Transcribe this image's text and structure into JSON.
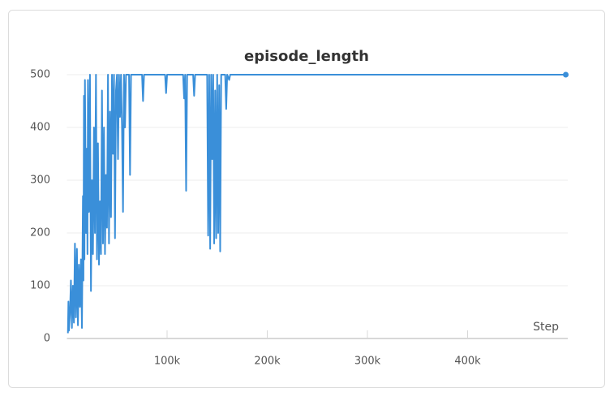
{
  "chart_data": {
    "type": "line",
    "title": "episode_length",
    "x_label": "Step",
    "color": "#3a8fd9",
    "xlim": [
      0,
      500000
    ],
    "ylim": [
      0,
      500
    ],
    "xticks": [
      {
        "value": 100000,
        "label": "100k"
      },
      {
        "value": 200000,
        "label": "200k"
      },
      {
        "value": 300000,
        "label": "300k"
      },
      {
        "value": 400000,
        "label": "400k"
      }
    ],
    "yticks": [
      0,
      100,
      200,
      300,
      400,
      500
    ],
    "grid": true,
    "x": [
      1000,
      1500,
      2000,
      3000,
      4000,
      5000,
      6000,
      7000,
      8000,
      9000,
      10000,
      11000,
      12000,
      13000,
      14000,
      15000,
      16000,
      16500,
      17000,
      17500,
      18000,
      19000,
      20000,
      20500,
      21000,
      22000,
      23000,
      24000,
      25000,
      26000,
      27000,
      28000,
      29000,
      30000,
      31000,
      32000,
      33000,
      34000,
      35000,
      36000,
      37000,
      38000,
      39000,
      40000,
      41000,
      42000,
      43000,
      44000,
      45000,
      46000,
      47000,
      48000,
      49000,
      50000,
      51000,
      52000,
      53000,
      54000,
      55000,
      56000,
      57000,
      58000,
      59000,
      62000,
      63000,
      64000,
      75000,
      76000,
      77000,
      98000,
      99000,
      100000,
      116000,
      117000,
      118000,
      119000,
      120000,
      126000,
      127000,
      128000,
      140000,
      141000,
      142000,
      143000,
      144000,
      145000,
      146000,
      147000,
      148000,
      149000,
      150000,
      151000,
      152000,
      153000,
      154000,
      158000,
      159000,
      160000,
      162000,
      163000,
      498000
    ],
    "values": [
      10,
      70,
      15,
      45,
      110,
      20,
      100,
      30,
      180,
      40,
      170,
      25,
      140,
      60,
      150,
      20,
      270,
      110,
      460,
      150,
      490,
      200,
      360,
      160,
      490,
      240,
      500,
      90,
      300,
      160,
      400,
      200,
      500,
      150,
      370,
      140,
      260,
      160,
      470,
      180,
      400,
      160,
      310,
      210,
      500,
      180,
      430,
      230,
      500,
      350,
      500,
      190,
      470,
      500,
      340,
      500,
      420,
      500,
      400,
      240,
      500,
      400,
      500,
      500,
      310,
      500,
      500,
      450,
      500,
      500,
      465,
      500,
      500,
      455,
      500,
      280,
      500,
      500,
      460,
      500,
      500,
      195,
      500,
      170,
      500,
      340,
      500,
      180,
      470,
      190,
      500,
      200,
      480,
      165,
      500,
      500,
      435,
      500,
      490,
      500,
      500
    ]
  }
}
